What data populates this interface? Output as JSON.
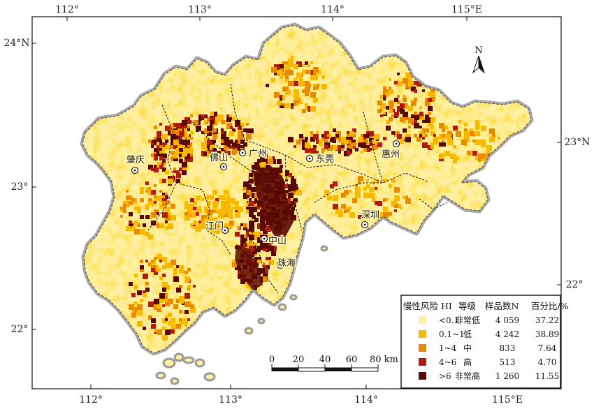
{
  "map": {
    "lon_ticks": [
      "112°",
      "113°",
      "114°",
      "115°E"
    ],
    "lat_ticks_left": [
      "24°N",
      "23°",
      "22°"
    ],
    "lat_ticks_right": [
      "23°N",
      "22°"
    ],
    "north_label": "N",
    "cities": [
      {
        "name": "肇庆"
      },
      {
        "name": "佛山"
      },
      {
        "name": "广州"
      },
      {
        "name": "东莞"
      },
      {
        "name": "惠州"
      },
      {
        "name": "深圳"
      },
      {
        "name": "江门"
      },
      {
        "name": "中山"
      },
      {
        "name": "珠海"
      }
    ],
    "scale_bar": {
      "labels": [
        "0",
        "20",
        "40",
        "60",
        "80 km"
      ]
    },
    "legend": {
      "headers": [
        "慢性风险 HI",
        "等级",
        "样品数N",
        "百分比/%"
      ],
      "rows": [
        {
          "range": "<0.1",
          "level": "非常低",
          "n": "4 059",
          "pct": "37.22",
          "color": "#fff2a8"
        },
        {
          "range": "0.1~1",
          "level": "低",
          "n": "4 242",
          "pct": "38.89",
          "color": "#f7b800"
        },
        {
          "range": "1~4",
          "level": "中",
          "n": "833",
          "pct": "7.64",
          "color": "#e68a00"
        },
        {
          "range": "4~6",
          "level": "高",
          "n": "513",
          "pct": "4.70",
          "color": "#b01e10"
        },
        {
          "range": ">6",
          "level": "非常高",
          "n": "1 260",
          "pct": "11.55",
          "color": "#5a0a05"
        }
      ]
    }
  }
}
